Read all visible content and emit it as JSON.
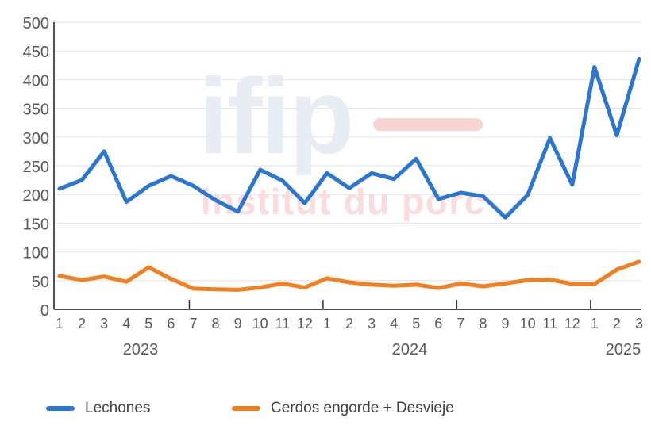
{
  "chart_data": {
    "type": "line",
    "title": "",
    "xlabel": "",
    "ylabel": "",
    "ylim": [
      0,
      500
    ],
    "ytick_step": 50,
    "grid": true,
    "legend_position": "bottom",
    "x_month_labels": [
      "1",
      "2",
      "3",
      "4",
      "5",
      "6",
      "7",
      "8",
      "9",
      "10",
      "11",
      "12",
      "1",
      "2",
      "3",
      "4",
      "5",
      "6",
      "7",
      "8",
      "9",
      "10",
      "11",
      "12",
      "1",
      "2",
      "3"
    ],
    "year_groups": [
      {
        "label": "2023",
        "months": 12
      },
      {
        "label": "2024",
        "months": 12
      },
      {
        "label": "2025",
        "months": 3
      }
    ],
    "x_tick_indices": [
      6,
      12,
      18,
      24
    ],
    "series": [
      {
        "name": "Lechones",
        "color": "#2b76d1",
        "values": [
          210,
          225,
          275,
          187,
          215,
          232,
          215,
          190,
          170,
          243,
          224,
          185,
          237,
          211,
          237,
          227,
          262,
          192,
          203,
          197,
          160,
          199,
          298,
          217,
          422,
          303,
          436
        ]
      },
      {
        "name": "Cerdos engorde + Desvieje",
        "color": "#f08020",
        "values": [
          58,
          51,
          57,
          48,
          73,
          53,
          36,
          35,
          34,
          38,
          45,
          38,
          54,
          47,
          43,
          41,
          43,
          37,
          45,
          40,
          45,
          51,
          52,
          44,
          44,
          69,
          83
        ]
      }
    ]
  },
  "watermark": {
    "brand": "ifip",
    "subtitle": "institut du porc",
    "brand_color": "#e8edf5",
    "subtitle_color": "#fbdcdc",
    "bar_color": "#f8d5d3"
  },
  "style_colors": {
    "axis": "#333333",
    "gridline": "#e2e2e2",
    "axis_labels": "#595959"
  }
}
